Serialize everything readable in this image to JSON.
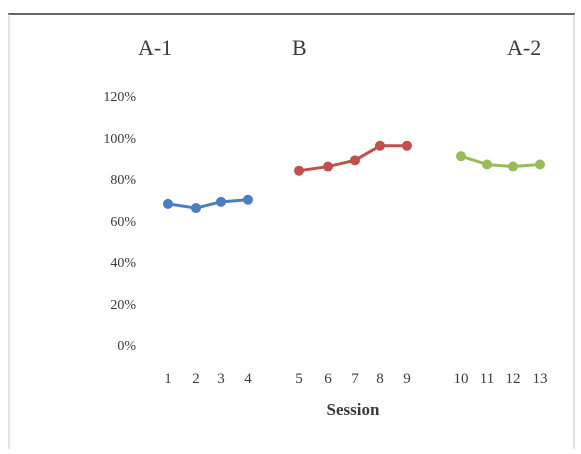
{
  "chart_data": {
    "type": "line",
    "title": "",
    "xlabel": "Session",
    "ylabel": "",
    "ylim": [
      0,
      120
    ],
    "yticks": [
      "0%",
      "20%",
      "40%",
      "60%",
      "80%",
      "100%",
      "120%"
    ],
    "grid": false,
    "legend": "none",
    "phase_labels": [
      "A-1",
      "B",
      "A-2"
    ],
    "series": [
      {
        "phase": "A-1",
        "color": "#4a7ec0",
        "x": [
          "1",
          "2",
          "3",
          "4"
        ],
        "values": [
          68,
          66,
          69,
          70
        ]
      },
      {
        "phase": "B",
        "color": "#c0504d",
        "x": [
          "5",
          "6",
          "7",
          "8",
          "9"
        ],
        "values": [
          84,
          86,
          89,
          96,
          96
        ]
      },
      {
        "phase": "A-2",
        "color": "#9bbb59",
        "x": [
          "10",
          "11",
          "12",
          "13"
        ],
        "values": [
          91,
          87,
          86,
          87
        ]
      }
    ]
  }
}
